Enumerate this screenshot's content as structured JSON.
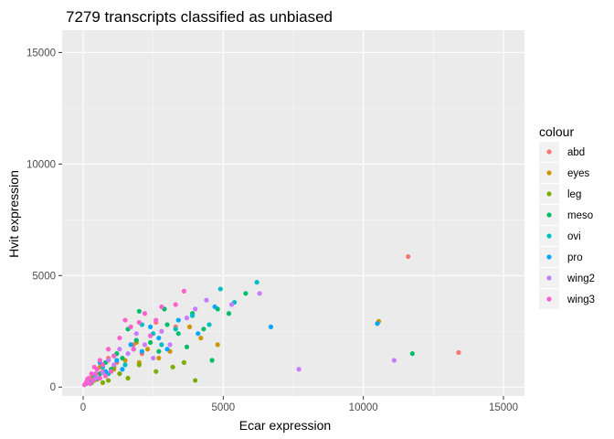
{
  "chart_data": {
    "type": "scatter",
    "title": "7279 transcripts classified as unbiased",
    "xlabel": "Ecar expression",
    "ylabel": "Hvit expression",
    "xlim": [
      -750,
      15750
    ],
    "ylim": [
      -400,
      16000
    ],
    "x_ticks": [
      0,
      5000,
      10000,
      15000
    ],
    "y_ticks": [
      0,
      5000,
      10000,
      15000
    ],
    "x_tick_labels": [
      "0",
      "5000",
      "10000",
      "15000"
    ],
    "y_tick_labels": [
      "0",
      "5000",
      "10000",
      "15000"
    ],
    "grid": true,
    "legend": {
      "title": "colour",
      "position": "right",
      "entries": [
        {
          "label": "abd",
          "color": "#F8766D"
        },
        {
          "label": "eyes",
          "color": "#CD9600"
        },
        {
          "label": "leg",
          "color": "#7CAE00"
        },
        {
          "label": "meso",
          "color": "#00BE67"
        },
        {
          "label": "ovi",
          "color": "#00BFC4"
        },
        {
          "label": "pro",
          "color": "#00A9FF"
        },
        {
          "label": "wing2",
          "color": "#C77CFF"
        },
        {
          "label": "wing3",
          "color": "#FF61CC"
        }
      ]
    },
    "series": [
      {
        "name": "abd",
        "color": "#F8766D",
        "points": [
          [
            11600,
            5850
          ],
          [
            13400,
            1550
          ],
          [
            2600,
            2900
          ],
          [
            1800,
            1900
          ],
          [
            700,
            700
          ],
          [
            400,
            300
          ],
          [
            1200,
            1100
          ],
          [
            3300,
            2700
          ],
          [
            900,
            1300
          ],
          [
            2100,
            1500
          ],
          [
            350,
            500
          ],
          [
            150,
            200
          ]
        ]
      },
      {
        "name": "eyes",
        "color": "#CD9600",
        "points": [
          [
            10550,
            2950
          ],
          [
            2300,
            1700
          ],
          [
            1500,
            1200
          ],
          [
            3800,
            2700
          ],
          [
            4800,
            1900
          ],
          [
            1100,
            800
          ],
          [
            2700,
            1300
          ],
          [
            600,
            900
          ],
          [
            1900,
            2000
          ],
          [
            3100,
            1600
          ],
          [
            800,
            500
          ],
          [
            300,
            400
          ],
          [
            2000,
            1100
          ],
          [
            4200,
            2200
          ]
        ]
      },
      {
        "name": "leg",
        "color": "#7CAE00",
        "points": [
          [
            4000,
            300
          ],
          [
            1300,
            600
          ],
          [
            900,
            300
          ],
          [
            3200,
            900
          ],
          [
            2600,
            700
          ],
          [
            700,
            200
          ],
          [
            1600,
            400
          ],
          [
            2000,
            1000
          ],
          [
            500,
            350
          ],
          [
            3600,
            1100
          ],
          [
            1100,
            900
          ]
        ]
      },
      {
        "name": "meso",
        "color": "#00BE67",
        "points": [
          [
            11750,
            1500
          ],
          [
            5800,
            4200
          ],
          [
            4800,
            3500
          ],
          [
            3900,
            3300
          ],
          [
            3000,
            2800
          ],
          [
            2400,
            2000
          ],
          [
            1900,
            2100
          ],
          [
            1400,
            1300
          ],
          [
            1000,
            800
          ],
          [
            3400,
            2400
          ],
          [
            4300,
            2600
          ],
          [
            5200,
            3300
          ],
          [
            2700,
            1600
          ],
          [
            600,
            600
          ],
          [
            2000,
            3400
          ],
          [
            3700,
            1800
          ],
          [
            1600,
            2600
          ],
          [
            2900,
            3500
          ],
          [
            4600,
            1200
          ],
          [
            1200,
            1500
          ],
          [
            800,
            1100
          ],
          [
            300,
            200
          ]
        ]
      },
      {
        "name": "ovi",
        "color": "#00BFC4",
        "points": [
          [
            6200,
            4700
          ],
          [
            4900,
            4400
          ],
          [
            3300,
            2600
          ],
          [
            2500,
            2400
          ],
          [
            1800,
            1700
          ],
          [
            1100,
            1400
          ],
          [
            4500,
            2800
          ],
          [
            700,
            900
          ],
          [
            2100,
            2800
          ],
          [
            3900,
            3200
          ],
          [
            1500,
            1000
          ],
          [
            400,
            500
          ],
          [
            2800,
            1900
          ],
          [
            5400,
            3800
          ],
          [
            900,
            600
          ]
        ]
      },
      {
        "name": "pro",
        "color": "#00A9FF",
        "points": [
          [
            10500,
            2850
          ],
          [
            6700,
            2700
          ],
          [
            4700,
            3600
          ],
          [
            3400,
            3000
          ],
          [
            2700,
            2200
          ],
          [
            2100,
            1600
          ],
          [
            1700,
            1900
          ],
          [
            1200,
            1200
          ],
          [
            800,
            700
          ],
          [
            500,
            400
          ],
          [
            3000,
            1700
          ],
          [
            4100,
            2400
          ],
          [
            1400,
            800
          ],
          [
            2400,
            2700
          ],
          [
            600,
            1100
          ],
          [
            250,
            300
          ],
          [
            100,
            150
          ]
        ]
      },
      {
        "name": "wing2",
        "color": "#C77CFF",
        "points": [
          [
            11100,
            1200
          ],
          [
            7700,
            800
          ],
          [
            6300,
            4200
          ],
          [
            5300,
            3700
          ],
          [
            4400,
            3900
          ],
          [
            3700,
            3100
          ],
          [
            2800,
            2500
          ],
          [
            2200,
            1900
          ],
          [
            1600,
            1500
          ],
          [
            1100,
            1000
          ],
          [
            700,
            650
          ],
          [
            3100,
            1900
          ],
          [
            1900,
            2400
          ],
          [
            2500,
            1300
          ],
          [
            4000,
            3500
          ],
          [
            1300,
            1700
          ],
          [
            900,
            1200
          ],
          [
            450,
            400
          ],
          [
            150,
            250
          ]
        ]
      },
      {
        "name": "wing3",
        "color": "#FF61CC",
        "points": [
          [
            3600,
            4300
          ],
          [
            2800,
            3600
          ],
          [
            2200,
            3300
          ],
          [
            1700,
            2700
          ],
          [
            1300,
            2200
          ],
          [
            900,
            1700
          ],
          [
            600,
            1200
          ],
          [
            400,
            900
          ],
          [
            300,
            600
          ],
          [
            200,
            400
          ],
          [
            100,
            200
          ],
          [
            50,
            100
          ],
          [
            1500,
            3000
          ],
          [
            2000,
            2900
          ],
          [
            1100,
            1400
          ],
          [
            700,
            1000
          ],
          [
            500,
            800
          ],
          [
            800,
            500
          ],
          [
            350,
            300
          ],
          [
            250,
            150
          ],
          [
            150,
            350
          ],
          [
            600,
            400
          ],
          [
            1000,
            700
          ],
          [
            450,
            600
          ],
          [
            2600,
            3000
          ],
          [
            3300,
            3700
          ],
          [
            2400,
            2300
          ],
          [
            1800,
            1700
          ]
        ]
      }
    ]
  }
}
